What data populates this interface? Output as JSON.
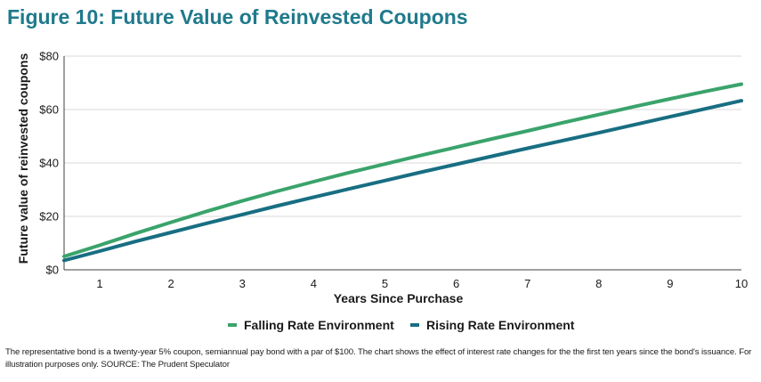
{
  "title": "Figure 10: Future Value of Reinvested Coupons",
  "footnote": "The representative bond is a twenty-year 5% coupon, semiannual pay bond with a par of $100.  The chart shows the effect of interest rate changes for the the first ten years since the bond's issuance. For illustration purposes only. SOURCE: The Prudent Speculator",
  "chart_data": {
    "type": "line",
    "title": "Figure 10: Future Value of Reinvested Coupons",
    "xlabel": "Years Since Purchase",
    "ylabel": "Future value of reinvested coupons",
    "xlim": [
      0.5,
      10
    ],
    "ylim": [
      0,
      80
    ],
    "x_ticks": [
      1,
      2,
      3,
      4,
      5,
      6,
      7,
      8,
      9,
      10
    ],
    "y_ticks": [
      0,
      20,
      40,
      60,
      80
    ],
    "y_tick_labels": [
      "$0",
      "$20",
      "$40",
      "$60",
      "$80"
    ],
    "grid": "horizontal",
    "legend": "bottom",
    "x": [
      0.5,
      1,
      1.5,
      2,
      2.5,
      3,
      3.5,
      4,
      4.5,
      5,
      5.5,
      6,
      6.5,
      7,
      7.5,
      8,
      8.5,
      9,
      9.5,
      10
    ],
    "series": [
      {
        "name": "Falling Rate Environment",
        "color": "#3aa36b",
        "values": [
          5.0,
          9.2,
          13.6,
          17.8,
          21.9,
          25.8,
          29.5,
          33.0,
          36.4,
          39.6,
          42.8,
          45.9,
          49.0,
          52.0,
          55.1,
          58.1,
          61.1,
          64.0,
          66.8,
          69.5
        ]
      },
      {
        "name": "Rising Rate Environment",
        "color": "#186e82",
        "values": [
          3.5,
          7.0,
          10.6,
          14.0,
          17.4,
          20.7,
          24.0,
          27.2,
          30.3,
          33.4,
          36.5,
          39.5,
          42.5,
          45.5,
          48.4,
          51.3,
          54.3,
          57.3,
          60.3,
          63.3
        ]
      }
    ]
  }
}
